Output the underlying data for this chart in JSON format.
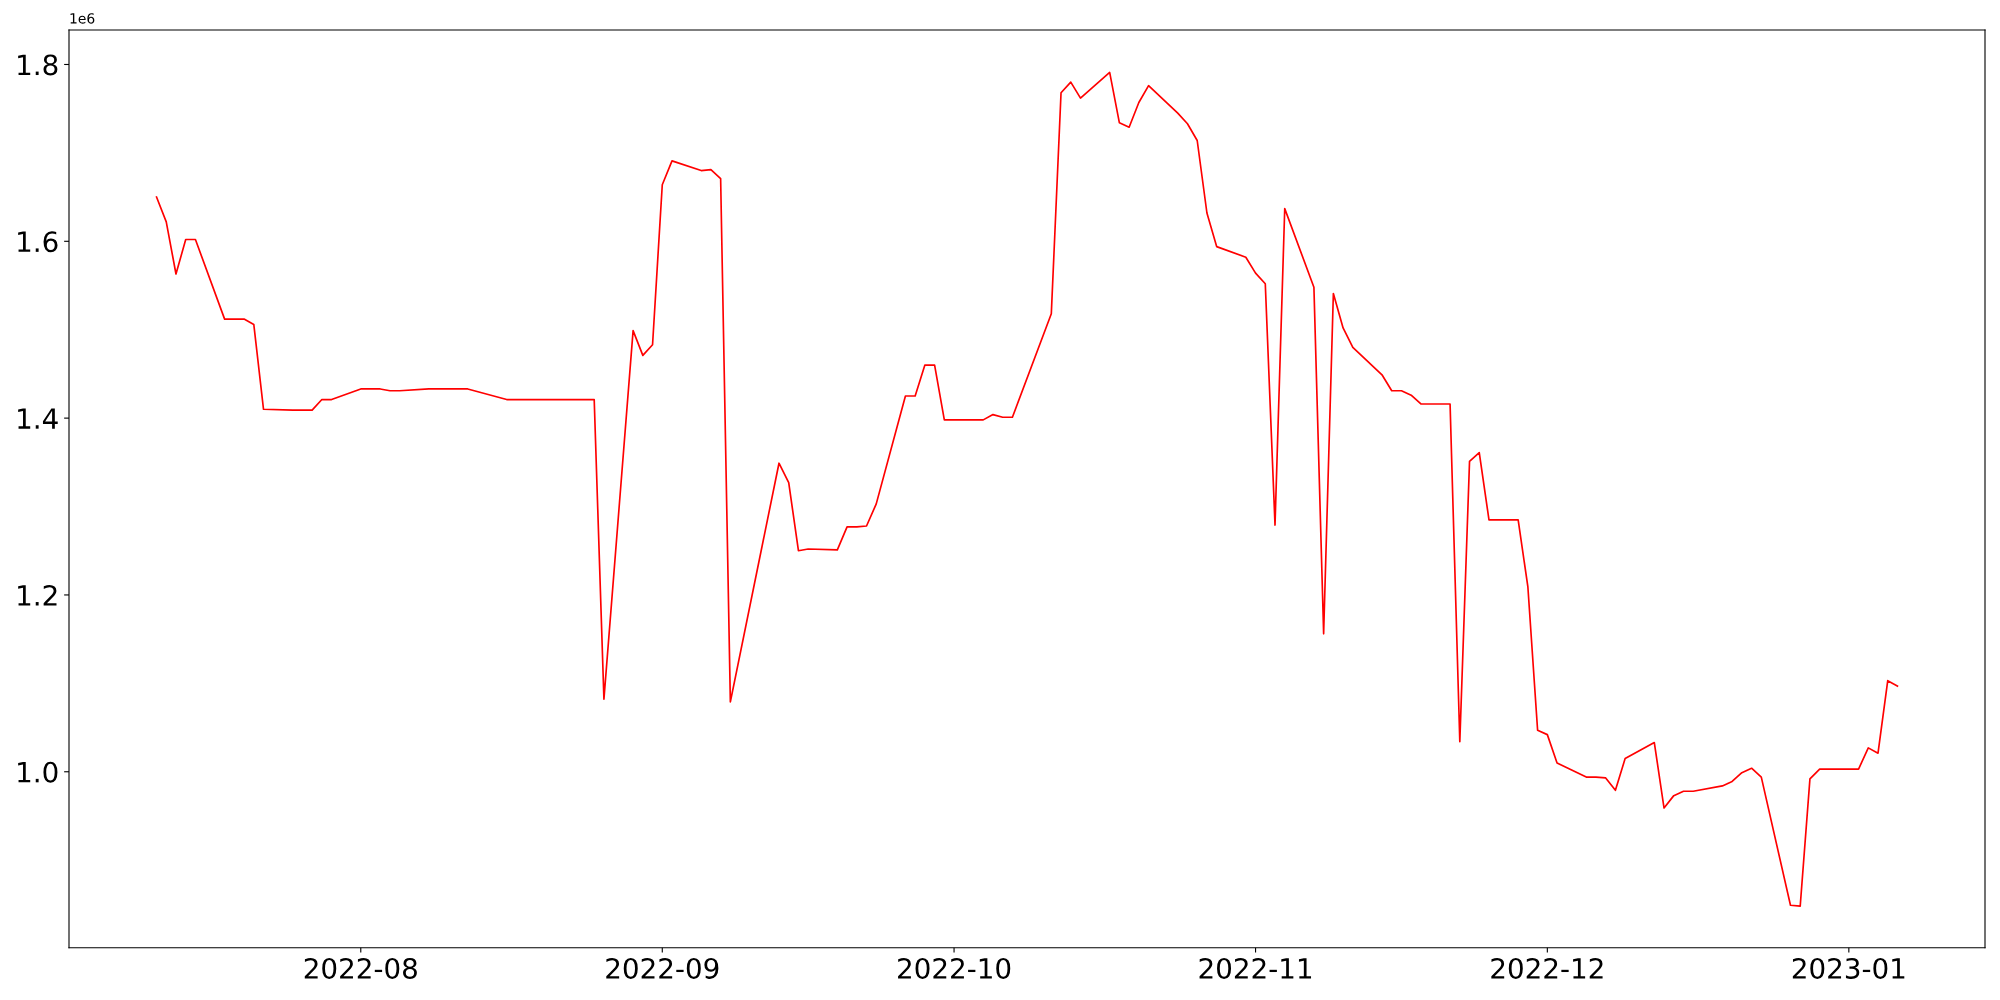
{
  "chart_data": {
    "type": "line",
    "x": [
      "2022-07-11",
      "2022-07-12",
      "2022-07-13",
      "2022-07-14",
      "2022-07-15",
      "2022-07-18",
      "2022-07-20",
      "2022-07-21",
      "2022-07-22",
      "2022-07-25",
      "2022-07-27",
      "2022-07-28",
      "2022-07-29",
      "2022-08-01",
      "2022-08-03",
      "2022-08-04",
      "2022-08-05",
      "2022-08-08",
      "2022-08-12",
      "2022-08-16",
      "2022-08-25",
      "2022-08-26",
      "2022-08-29",
      "2022-08-30",
      "2022-08-31",
      "2022-09-01",
      "2022-09-02",
      "2022-09-05",
      "2022-09-06",
      "2022-09-07",
      "2022-09-08",
      "2022-09-13",
      "2022-09-14",
      "2022-09-15",
      "2022-09-16",
      "2022-09-19",
      "2022-09-20",
      "2022-09-21",
      "2022-09-22",
      "2022-09-23",
      "2022-09-26",
      "2022-09-27",
      "2022-09-28",
      "2022-09-29",
      "2022-09-30",
      "2022-10-04",
      "2022-10-05",
      "2022-10-06",
      "2022-10-07",
      "2022-10-11",
      "2022-10-12",
      "2022-10-13",
      "2022-10-14",
      "2022-10-17",
      "2022-10-18",
      "2022-10-19",
      "2022-10-20",
      "2022-10-21",
      "2022-10-24",
      "2022-10-25",
      "2022-10-26",
      "2022-10-27",
      "2022-10-28",
      "2022-10-31",
      "2022-11-01",
      "2022-11-02",
      "2022-11-03",
      "2022-11-04",
      "2022-11-07",
      "2022-11-08",
      "2022-11-09",
      "2022-11-10",
      "2022-11-11",
      "2022-11-14",
      "2022-11-15",
      "2022-11-16",
      "2022-11-17",
      "2022-11-18",
      "2022-11-21",
      "2022-11-22",
      "2022-11-23",
      "2022-11-24",
      "2022-11-25",
      "2022-11-28",
      "2022-11-29",
      "2022-11-30",
      "2022-12-01",
      "2022-12-02",
      "2022-12-05",
      "2022-12-06",
      "2022-12-07",
      "2022-12-08",
      "2022-12-09",
      "2022-12-12",
      "2022-12-13",
      "2022-12-14",
      "2022-12-15",
      "2022-12-16",
      "2022-12-19",
      "2022-12-20",
      "2022-12-21",
      "2022-12-22",
      "2022-12-23",
      "2022-12-26",
      "2022-12-27",
      "2022-12-28",
      "2022-12-29",
      "2023-01-02",
      "2023-01-03",
      "2023-01-04",
      "2023-01-05",
      "2023-01-06"
    ],
    "series": [
      {
        "color": "#ff0000",
        "values": [
          1.65,
          1.622,
          1.563,
          1.602,
          1.602,
          1.512,
          1.512,
          1.506,
          1.41,
          1.409,
          1.409,
          1.421,
          1.421,
          1.433,
          1.433,
          1.431,
          1.431,
          1.433,
          1.433,
          1.421,
          1.421,
          1.082,
          1.499,
          1.471,
          1.483,
          1.664,
          1.691,
          1.68,
          1.681,
          1.671,
          1.079,
          1.349,
          1.327,
          1.25,
          1.252,
          1.251,
          1.277,
          1.277,
          1.278,
          1.303,
          1.425,
          1.425,
          1.46,
          1.46,
          1.398,
          1.398,
          1.404,
          1.401,
          1.401,
          1.518,
          1.768,
          1.78,
          1.762,
          1.791,
          1.734,
          1.729,
          1.757,
          1.776,
          1.745,
          1.733,
          1.714,
          1.632,
          1.594,
          1.582,
          1.564,
          1.552,
          1.279,
          1.637,
          1.548,
          1.156,
          1.541,
          1.502,
          1.48,
          1.449,
          1.431,
          1.431,
          1.426,
          1.416,
          1.416,
          1.034,
          1.351,
          1.361,
          1.285,
          1.285,
          1.209,
          1.047,
          1.042,
          1.01,
          0.994,
          0.994,
          0.993,
          0.979,
          1.015,
          1.033,
          0.959,
          0.973,
          0.978,
          0.978,
          0.984,
          0.989,
          0.999,
          1.004,
          0.994,
          0.849,
          0.848,
          0.992,
          1.003,
          1.003,
          1.027,
          1.021,
          1.103,
          1.097
        ]
      }
    ],
    "xlim": [
      "2022-07-02",
      "2023-01-15"
    ],
    "xticks": [
      {
        "value": "2022-08-01",
        "label": "2022-08"
      },
      {
        "value": "2022-09-01",
        "label": "2022-09"
      },
      {
        "value": "2022-10-01",
        "label": "2022-10"
      },
      {
        "value": "2022-11-01",
        "label": "2022-11"
      },
      {
        "value": "2022-12-01",
        "label": "2022-12"
      },
      {
        "value": "2023-01-01",
        "label": "2023-01"
      }
    ],
    "ylim": [
      0.801,
      1.839
    ],
    "yticks": [
      {
        "value": 1.0,
        "label": "1.0"
      },
      {
        "value": 1.2,
        "label": "1.2"
      },
      {
        "value": 1.4,
        "label": "1.4"
      },
      {
        "value": 1.6,
        "label": "1.6"
      },
      {
        "value": 1.8,
        "label": "1.8"
      }
    ],
    "annotations": [
      "1e6"
    ],
    "grid": false,
    "legend": false,
    "marker": "none",
    "line_style": "solid"
  }
}
